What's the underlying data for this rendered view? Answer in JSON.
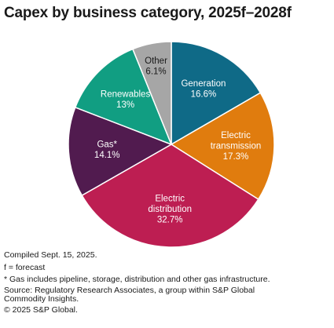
{
  "title": "Capex by business category, 2025f–2028f",
  "chart_data": {
    "type": "pie",
    "title": "Capex by business category, 2025f–2028f",
    "unit": "%",
    "slices": [
      {
        "label": [
          "Generation"
        ],
        "value": 16.6,
        "value_label": "16.6%",
        "color": "#0f6a87",
        "text_color": "#ffffff"
      },
      {
        "label": [
          "Electric",
          "transmission"
        ],
        "value": 17.3,
        "value_label": "17.3%",
        "color": "#e07c0e",
        "text_color": "#ffffff"
      },
      {
        "label": [
          "Electric",
          "distribution"
        ],
        "value": 32.7,
        "value_label": "32.7%",
        "color": "#bd1e52",
        "text_color": "#ffffff"
      },
      {
        "label": [
          "Gas*"
        ],
        "value": 14.1,
        "value_label": "14.1%",
        "color": "#511b4f",
        "text_color": "#ffffff"
      },
      {
        "label": [
          "Renewables"
        ],
        "value": 13,
        "value_label": "13%",
        "color": "#119e82",
        "text_color": "#ffffff"
      },
      {
        "label": [
          "Other"
        ],
        "value": 6.1,
        "value_label": "6.1%",
        "color": "#a6a6a6",
        "text_color": "#1a1a1a"
      }
    ]
  },
  "notes": {
    "compiled": "Compiled Sept. 15, 2025.",
    "forecast": "f = forecast",
    "gas_note": "* Gas includes pipeline, storage, distribution and other gas infrastructure.",
    "source": "Source: Regulatory Research Associates, a group within S&P Global Commodity Insights.",
    "copyright": "© 2025 S&P Global."
  }
}
